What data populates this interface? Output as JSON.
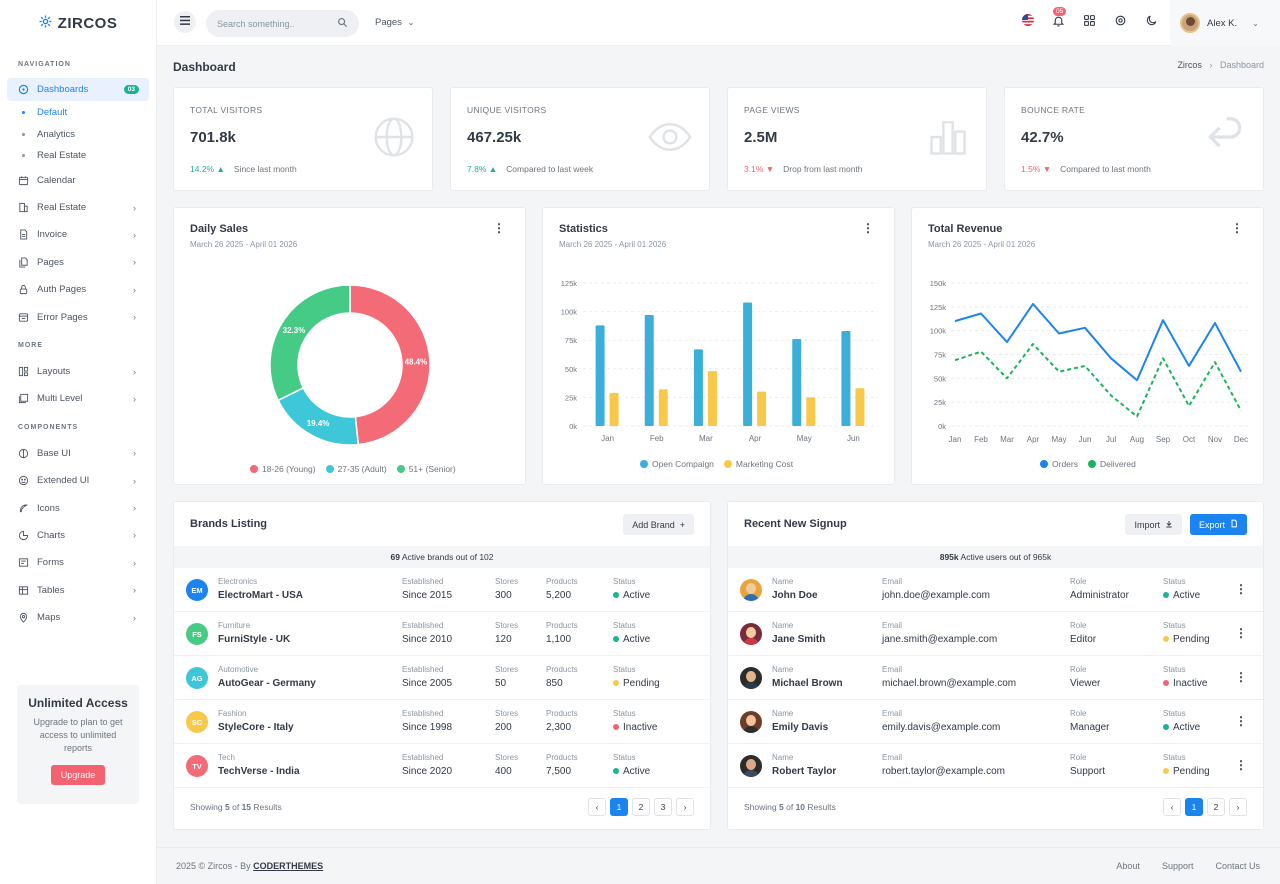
{
  "brand": {
    "name": "ZIRCOS"
  },
  "sidebar": {
    "section_nav": "NAVIGATION",
    "dashboards": {
      "label": "Dashboards",
      "badge": "03"
    },
    "dash_sub": [
      "Default",
      "Analytics",
      "Real Estate"
    ],
    "nav_items": [
      "Calendar",
      "Real Estate",
      "Invoice",
      "Pages",
      "Auth Pages",
      "Error Pages"
    ],
    "section_more": "MORE",
    "more_items": [
      "Layouts",
      "Multi Level"
    ],
    "section_components": "COMPONENTS",
    "component_items": [
      "Base UI",
      "Extended UI",
      "Icons",
      "Charts",
      "Forms",
      "Tables",
      "Maps"
    ],
    "promo": {
      "title": "Unlimited Access",
      "text": "Upgrade to plan to get access to unlimited reports",
      "button": "Upgrade"
    }
  },
  "topbar": {
    "search_placeholder": "Search something..",
    "pages": "Pages",
    "notif_count": "05",
    "user_name": "Alex K."
  },
  "page": {
    "title": "Dashboard",
    "crumb_root": "Zircos",
    "crumb_current": "Dashboard"
  },
  "stats": [
    {
      "label": "TOTAL VISITORS",
      "value": "701.8k",
      "change": "14.2%",
      "note": "Since last month",
      "dir": "up"
    },
    {
      "label": "UNIQUE VISITORS",
      "value": "467.25k",
      "change": "7.8%",
      "note": "Compared to last week",
      "dir": "up"
    },
    {
      "label": "PAGE VIEWS",
      "value": "2.5M",
      "change": "3.1%",
      "note": "Drop from last month",
      "dir": "down"
    },
    {
      "label": "BOUNCE RATE",
      "value": "42.7%",
      "change": "1.5%",
      "note": "Compared to last month",
      "dir": "down"
    }
  ],
  "daily_sales": {
    "title": "Daily Sales",
    "range": "March 26 2025 - April 01 2026"
  },
  "statistics": {
    "title": "Statistics",
    "range": "March 26 2025 - April 01 2026"
  },
  "revenue": {
    "title": "Total Revenue",
    "range": "March 26 2025 - April 01 2026"
  },
  "chart_data": [
    {
      "type": "pie",
      "title": "Daily Sales",
      "categories": [
        "18-26 (Young)",
        "27-35 (Adult)",
        "51+ (Senior)"
      ],
      "values": [
        48.4,
        19.4,
        32.3
      ],
      "labels": [
        "48.4%",
        "19.4%",
        "32.3%"
      ],
      "colors": [
        "#f36b77",
        "#3ec7d8",
        "#45cb85"
      ],
      "legend": "bottom"
    },
    {
      "type": "bar",
      "title": "Statistics",
      "categories": [
        "Jan",
        "Feb",
        "Mar",
        "Apr",
        "May",
        "Jun"
      ],
      "series": [
        {
          "name": "Open Compaign",
          "values": [
            88000,
            97000,
            67000,
            108000,
            76000,
            83000
          ],
          "color": "#3bafda"
        },
        {
          "name": "Marketing Cost",
          "values": [
            29000,
            32000,
            48000,
            30000,
            25000,
            33000
          ],
          "color": "#f7c84a"
        }
      ],
      "yticks": [
        "0k",
        "25k",
        "50k",
        "75k",
        "100k",
        "125k"
      ],
      "ylim": [
        0,
        125000
      ],
      "grid": true,
      "legend": "bottom"
    },
    {
      "type": "line",
      "title": "Total Revenue",
      "categories": [
        "Jan",
        "Feb",
        "Mar",
        "Apr",
        "May",
        "Jun",
        "Jul",
        "Aug",
        "Sep",
        "Oct",
        "Nov",
        "Dec"
      ],
      "series": [
        {
          "name": "Orders",
          "values": [
            110000,
            118000,
            88000,
            128000,
            97000,
            103000,
            71000,
            48000,
            111000,
            63000,
            108000,
            57000
          ],
          "color": "#1c84ee",
          "dashed": false
        },
        {
          "name": "Delivered",
          "values": [
            69000,
            78000,
            50000,
            86000,
            57000,
            63000,
            32000,
            10000,
            71000,
            21000,
            67000,
            16000
          ],
          "color": "#1bb35c",
          "dashed": true
        }
      ],
      "yticks": [
        "0k",
        "25k",
        "50k",
        "75k",
        "100k",
        "125k",
        "150k"
      ],
      "ylim": [
        0,
        150000
      ],
      "grid": true,
      "legend": "bottom"
    }
  ],
  "brands": {
    "title": "Brands Listing",
    "add_button": "Add Brand",
    "summary_count": "69",
    "summary_text": "Active brands out of 102",
    "col_est": "Established",
    "col_stores": "Stores",
    "col_products": "Products",
    "col_status": "Status",
    "rows": [
      {
        "initials": "EM",
        "category": "Electronics",
        "name": "ElectroMart - USA",
        "established": "Since 2015",
        "stores": "300",
        "products": "5,200",
        "status": "Active",
        "color": "#1c84ee"
      },
      {
        "initials": "FS",
        "category": "Furniture",
        "name": "FurniStyle - UK",
        "established": "Since 2010",
        "stores": "120",
        "products": "1,100",
        "status": "Active",
        "color": "#45cb85"
      },
      {
        "initials": "AG",
        "category": "Automotive",
        "name": "AutoGear - Germany",
        "established": "Since 2005",
        "stores": "50",
        "products": "850",
        "status": "Pending",
        "color": "#3ec7d8"
      },
      {
        "initials": "SC",
        "category": "Fashion",
        "name": "StyleCore - Italy",
        "established": "Since 1998",
        "stores": "200",
        "products": "2,300",
        "status": "Inactive",
        "color": "#f7c84a"
      },
      {
        "initials": "TV",
        "category": "Tech",
        "name": "TechVerse - India",
        "established": "Since 2020",
        "stores": "400",
        "products": "7,500",
        "status": "Active",
        "color": "#f36b77"
      }
    ],
    "footer_pre": "Showing",
    "shown": "5",
    "footer_mid": "of",
    "total": "15",
    "footer_post": "Results",
    "pages": [
      "1",
      "2",
      "3"
    ]
  },
  "signups": {
    "title": "Recent New Signup",
    "import_button": "Import",
    "export_button": "Export",
    "summary_count": "895k",
    "summary_text": "Active users out of 965k",
    "col_name": "Name",
    "col_email": "Email",
    "col_role": "Role",
    "col_status": "Status",
    "rows": [
      {
        "name": "John Doe",
        "email": "john.doe@example.com",
        "role": "Administrator",
        "status": "Active"
      },
      {
        "name": "Jane Smith",
        "email": "jane.smith@example.com",
        "role": "Editor",
        "status": "Pending"
      },
      {
        "name": "Michael Brown",
        "email": "michael.brown@example.com",
        "role": "Viewer",
        "status": "Inactive"
      },
      {
        "name": "Emily Davis",
        "email": "emily.davis@example.com",
        "role": "Manager",
        "status": "Active"
      },
      {
        "name": "Robert Taylor",
        "email": "robert.taylor@example.com",
        "role": "Support",
        "status": "Pending"
      }
    ],
    "footer_pre": "Showing",
    "shown": "5",
    "footer_mid": "of",
    "total": "10",
    "footer_post": "Results",
    "pages": [
      "1",
      "2"
    ]
  },
  "status_colors": {
    "Active": "#1ab394",
    "Pending": "#f7c84a",
    "Inactive": "#f36270"
  },
  "footer": {
    "copy": "2025 © Zircos - By",
    "company": "CODERTHEMES",
    "links": [
      "About",
      "Support",
      "Contact Us"
    ]
  }
}
